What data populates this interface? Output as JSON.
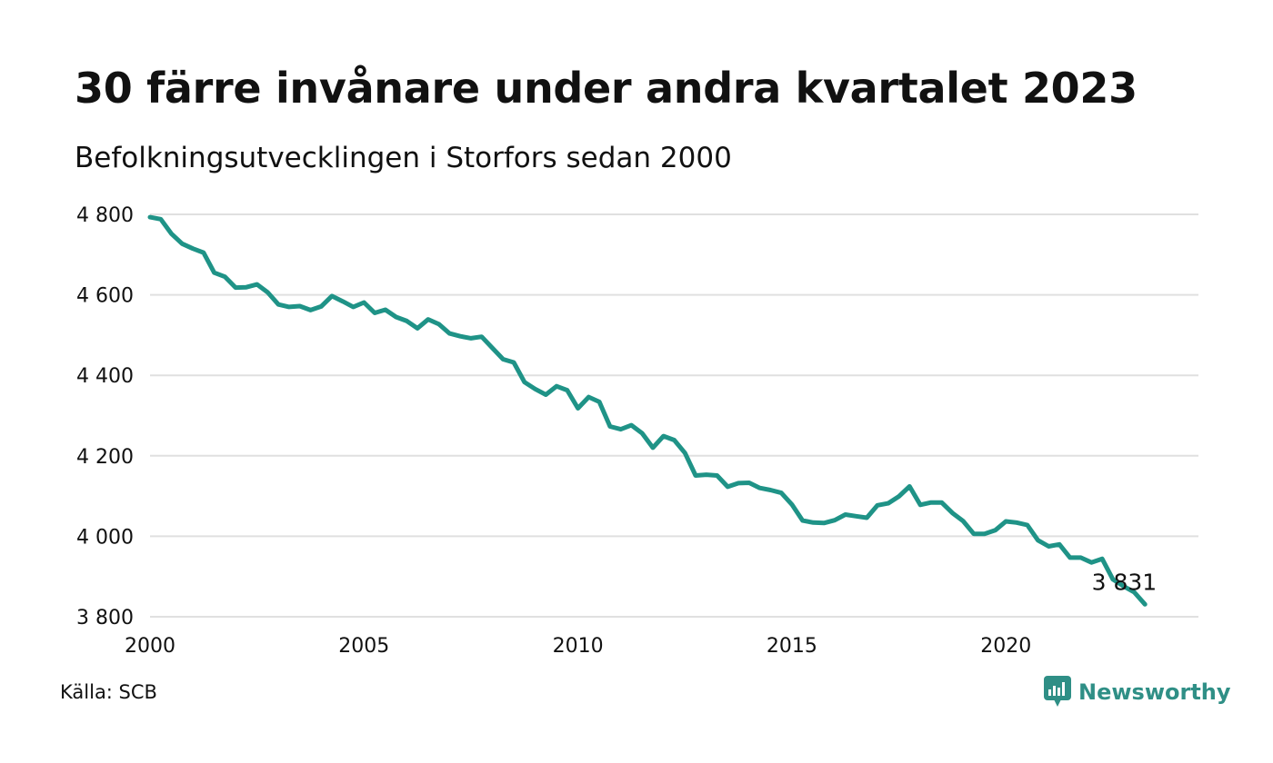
{
  "title": "30 färre invånare under andra kvartalet 2023",
  "subtitle": "Befolkningsutvecklingen i Storfors sedan 2000",
  "source": "Källa: SCB",
  "brand": {
    "name": "Newsworthy",
    "icon": "newsworthy-logo-icon",
    "color": "#2f8f86"
  },
  "chart_data": {
    "type": "line",
    "line_color": "#1f9387",
    "grid": true,
    "x_ticks": [
      "2000",
      "2005",
      "2010",
      "2015",
      "2020"
    ],
    "y_ticks": [
      "3 800",
      "4 000",
      "4 200",
      "4 400",
      "4 600",
      "4 800"
    ],
    "xlim": [
      "2000-Q1",
      "2024-Q3"
    ],
    "ylim": [
      3800,
      4800
    ],
    "end_label": "3 831",
    "series": [
      {
        "x": [
          "2000-Q1",
          "2000-Q2",
          "2000-Q3",
          "2000-Q4",
          "2001-Q1",
          "2001-Q2",
          "2001-Q3",
          "2001-Q4",
          "2002-Q1",
          "2002-Q2",
          "2002-Q3",
          "2002-Q4",
          "2003-Q1",
          "2003-Q2",
          "2003-Q3",
          "2003-Q4",
          "2004-Q1",
          "2004-Q2",
          "2004-Q3",
          "2004-Q4",
          "2005-Q1",
          "2005-Q2",
          "2005-Q3",
          "2005-Q4",
          "2006-Q1",
          "2006-Q2",
          "2006-Q3",
          "2006-Q4",
          "2007-Q1",
          "2007-Q2",
          "2007-Q3",
          "2007-Q4",
          "2008-Q1",
          "2008-Q2",
          "2008-Q3",
          "2008-Q4",
          "2009-Q1",
          "2009-Q2",
          "2009-Q3",
          "2009-Q4",
          "2010-Q1",
          "2010-Q2",
          "2010-Q3",
          "2010-Q4",
          "2011-Q1",
          "2011-Q2",
          "2011-Q3",
          "2011-Q4",
          "2012-Q1",
          "2012-Q2",
          "2012-Q3",
          "2012-Q4",
          "2013-Q1",
          "2013-Q2",
          "2013-Q3",
          "2013-Q4",
          "2014-Q1",
          "2014-Q2",
          "2014-Q3",
          "2014-Q4",
          "2015-Q1",
          "2015-Q2",
          "2015-Q3",
          "2015-Q4",
          "2016-Q1",
          "2016-Q2",
          "2016-Q3",
          "2016-Q4",
          "2017-Q1",
          "2017-Q2",
          "2017-Q3",
          "2017-Q4",
          "2018-Q1",
          "2018-Q2",
          "2018-Q3",
          "2018-Q4",
          "2019-Q1",
          "2019-Q2",
          "2019-Q3",
          "2019-Q4",
          "2020-Q1",
          "2020-Q2",
          "2020-Q3",
          "2020-Q4",
          "2021-Q1",
          "2021-Q2",
          "2021-Q3",
          "2021-Q4",
          "2022-Q1",
          "2022-Q2",
          "2022-Q3",
          "2022-Q4",
          "2023-Q1",
          "2023-Q2"
        ],
        "values": [
          4793,
          4788,
          4752,
          4727,
          4715,
          4705,
          4655,
          4645,
          4618,
          4619,
          4626,
          4606,
          4576,
          4570,
          4572,
          4562,
          4571,
          4597,
          4584,
          4570,
          4581,
          4555,
          4563,
          4545,
          4535,
          4517,
          4539,
          4527,
          4504,
          4497,
          4492,
          4496,
          4468,
          4440,
          4432,
          4383,
          4366,
          4352,
          4373,
          4363,
          4318,
          4346,
          4334,
          4273,
          4266,
          4276,
          4256,
          4220,
          4249,
          4239,
          4207,
          4151,
          4153,
          4151,
          4123,
          4132,
          4133,
          4120,
          4115,
          4108,
          4079,
          4039,
          4034,
          4033,
          4040,
          4054,
          4050,
          4046,
          4077,
          4082,
          4099,
          4124,
          4078,
          4084,
          4084,
          4058,
          4038,
          4006,
          4006,
          4015,
          4037,
          4034,
          4028,
          3990,
          3975,
          3980,
          3947,
          3947,
          3935,
          3944,
          3893,
          3876,
          3861,
          3831
        ]
      }
    ]
  }
}
